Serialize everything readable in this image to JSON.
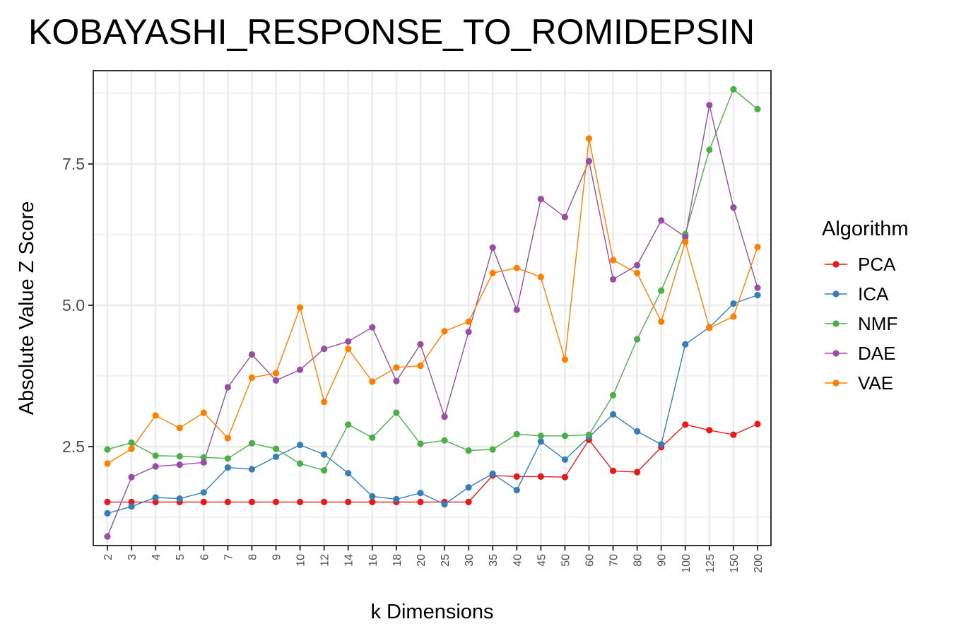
{
  "chart_data": {
    "type": "line",
    "title": "KOBAYASHI_RESPONSE_TO_ROMIDEPSIN",
    "xlabel": "k Dimensions",
    "ylabel": "Absolute Value Z Score",
    "categories": [
      "2",
      "3",
      "4",
      "5",
      "6",
      "7",
      "8",
      "9",
      "10",
      "12",
      "14",
      "16",
      "18",
      "20",
      "25",
      "30",
      "35",
      "40",
      "45",
      "50",
      "60",
      "70",
      "80",
      "90",
      "100",
      "125",
      "150",
      "200"
    ],
    "ylim": [
      0.75,
      9.15
    ],
    "yticks": [
      2.5,
      5.0,
      7.5
    ],
    "ytick_labels": [
      "2.5",
      "5.0",
      "7.5"
    ],
    "grid": true,
    "legend": {
      "title": "Algorithm",
      "position": "right"
    },
    "series": [
      {
        "name": "PCA",
        "color": "#e41a1c",
        "values": [
          1.52,
          1.52,
          1.52,
          1.52,
          1.52,
          1.52,
          1.52,
          1.52,
          1.52,
          1.52,
          1.52,
          1.52,
          1.52,
          1.52,
          1.52,
          1.52,
          1.99,
          1.97,
          1.97,
          1.96,
          2.62,
          2.07,
          2.05,
          2.49,
          2.89,
          2.79,
          2.71,
          2.9
        ]
      },
      {
        "name": "ICA",
        "color": "#377eb8",
        "values": [
          1.32,
          1.44,
          1.6,
          1.58,
          1.69,
          2.13,
          2.1,
          2.32,
          2.53,
          2.36,
          2.03,
          1.62,
          1.57,
          1.68,
          1.48,
          1.78,
          2.02,
          1.73,
          2.59,
          2.27,
          2.67,
          3.07,
          2.77,
          2.54,
          4.31,
          4.61,
          5.03,
          5.18
        ]
      },
      {
        "name": "NMF",
        "color": "#4daf4a",
        "values": [
          2.45,
          2.57,
          2.34,
          2.33,
          2.31,
          2.29,
          2.56,
          2.46,
          2.2,
          2.08,
          2.89,
          2.66,
          3.1,
          2.55,
          2.61,
          2.43,
          2.45,
          2.72,
          2.69,
          2.69,
          2.71,
          3.41,
          4.4,
          5.26,
          6.26,
          7.75,
          8.82,
          8.47
        ]
      },
      {
        "name": "DAE",
        "color": "#984ea3",
        "values": [
          0.91,
          1.96,
          2.15,
          2.18,
          2.22,
          3.55,
          4.13,
          3.67,
          3.86,
          4.23,
          4.36,
          4.61,
          3.66,
          4.31,
          3.03,
          4.53,
          6.02,
          4.92,
          6.88,
          6.56,
          7.55,
          5.46,
          5.71,
          6.5,
          6.21,
          8.54,
          6.73,
          5.31
        ]
      },
      {
        "name": "VAE",
        "color": "#ff7f00",
        "values": [
          2.2,
          2.46,
          3.05,
          2.83,
          3.1,
          2.65,
          3.72,
          3.8,
          4.96,
          3.29,
          4.23,
          3.65,
          3.9,
          3.93,
          4.54,
          4.71,
          5.57,
          5.66,
          5.5,
          4.04,
          7.95,
          5.8,
          5.57,
          4.71,
          6.12,
          4.6,
          4.8,
          6.03
        ]
      }
    ]
  }
}
